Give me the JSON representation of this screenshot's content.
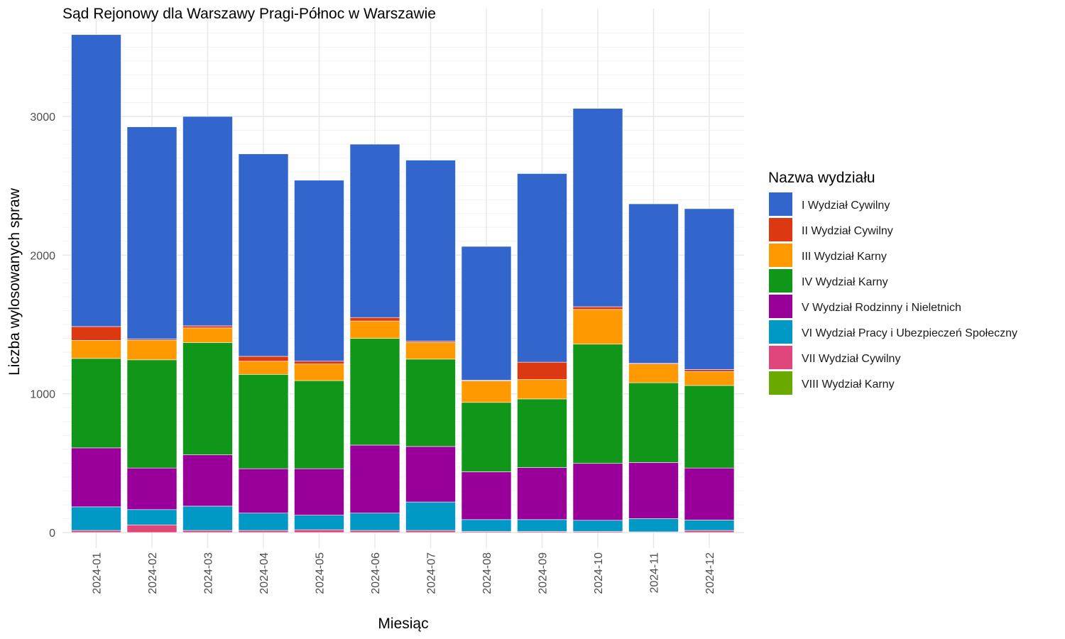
{
  "chart_data": {
    "type": "bar",
    "stacked": true,
    "title": "Sąd Rejonowy dla Warszawy Pragi-Północ w Warszawie",
    "xlabel": "Miesiąc",
    "ylabel": "Liczba wylosowanych spraw",
    "ylim": [
      0,
      3600
    ],
    "y_ticks": [
      0,
      1000,
      2000,
      3000
    ],
    "grid": true,
    "legend": {
      "title": "Nazwa wydziału",
      "position": "right"
    },
    "categories": [
      "2024-01",
      "2024-02",
      "2024-03",
      "2024-04",
      "2024-05",
      "2024-06",
      "2024-07",
      "2024-08",
      "2024-09",
      "2024-10",
      "2024-11",
      "2024-12"
    ],
    "series": [
      {
        "name": "VIII Wydział Karny",
        "color": "#6aaa00",
        "values": [
          0,
          0,
          0,
          0,
          0,
          0,
          0,
          0,
          0,
          0,
          0,
          0
        ]
      },
      {
        "name": "VII Wydział Cywilny",
        "color": "#e0457b",
        "values": [
          15,
          55,
          15,
          15,
          20,
          15,
          15,
          8,
          8,
          8,
          5,
          15
        ]
      },
      {
        "name": "VI Wydział Pracy i Ubezpieczeń Społeczny",
        "color": "#0099c6",
        "values": [
          170,
          110,
          175,
          125,
          105,
          125,
          205,
          85,
          85,
          80,
          95,
          75
        ]
      },
      {
        "name": "V Wydział Rodzinny i Nieletnich",
        "color": "#990099",
        "values": [
          425,
          300,
          370,
          320,
          335,
          490,
          400,
          345,
          375,
          410,
          405,
          375
        ]
      },
      {
        "name": "IV Wydział Karny",
        "color": "#109618",
        "values": [
          645,
          780,
          810,
          680,
          635,
          770,
          630,
          500,
          495,
          860,
          575,
          595
        ]
      },
      {
        "name": "III Wydział Karny",
        "color": "#ff9900",
        "values": [
          130,
          140,
          105,
          95,
          120,
          125,
          120,
          155,
          140,
          250,
          135,
          100
        ]
      },
      {
        "name": "II Wydział Cywilny",
        "color": "#dc3912",
        "values": [
          100,
          10,
          15,
          35,
          20,
          25,
          10,
          5,
          125,
          20,
          5,
          15
        ]
      },
      {
        "name": "I Wydział Cywilny",
        "color": "#3366cc",
        "values": [
          2105,
          1530,
          1510,
          1460,
          1305,
          1250,
          1305,
          965,
          1360,
          1430,
          1150,
          1160
        ]
      }
    ]
  }
}
